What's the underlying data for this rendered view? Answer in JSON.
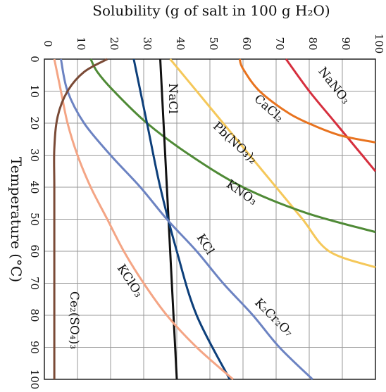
{
  "chart_data": {
    "type": "line",
    "orientation": "rotated",
    "x_axis": {
      "label": "Solubility (g of salt in 100 g H₂O)",
      "range": [
        0,
        100
      ],
      "ticks": [
        "0",
        "10",
        "20",
        "30",
        "40",
        "50",
        "60",
        "70",
        "80",
        "90",
        "100"
      ],
      "position": "top"
    },
    "y_axis": {
      "label": "Temperature (°C)",
      "range": [
        0,
        100
      ],
      "ticks": [
        "0",
        "10",
        "20",
        "30",
        "40",
        "50",
        "60",
        "70",
        "80",
        "90",
        "100"
      ],
      "position": "left"
    },
    "grid": true,
    "series": [
      {
        "name": "NaNO₃",
        "color": "#d62f3e",
        "points": [
          [
            73,
            0
          ],
          [
            80,
            10
          ],
          [
            88,
            20
          ],
          [
            96,
            30
          ],
          [
            100,
            35
          ]
        ]
      },
      {
        "name": "CaCl₂",
        "color": "#e8731f",
        "points": [
          [
            59,
            0
          ],
          [
            60,
            3
          ],
          [
            65,
            10
          ],
          [
            74,
            17
          ],
          [
            82,
            21
          ],
          [
            90,
            24
          ],
          [
            100,
            26
          ]
        ]
      },
      {
        "name": "Pb(NO₃)₂",
        "color": "#f5c85a",
        "points": [
          [
            38,
            0
          ],
          [
            46,
            10
          ],
          [
            54,
            20
          ],
          [
            62,
            30
          ],
          [
            70,
            40
          ],
          [
            78,
            50
          ],
          [
            86,
            60
          ],
          [
            100,
            65
          ]
        ]
      },
      {
        "name": "KNO₃",
        "color": "#4f8a36",
        "points": [
          [
            14,
            0
          ],
          [
            16,
            4
          ],
          [
            21,
            10
          ],
          [
            31,
            20
          ],
          [
            44,
            30
          ],
          [
            60,
            40
          ],
          [
            79,
            48
          ],
          [
            100,
            54
          ]
        ]
      },
      {
        "name": "NaCl",
        "color": "#111111",
        "points": [
          [
            35,
            0
          ],
          [
            36,
            20
          ],
          [
            37,
            40
          ],
          [
            38,
            60
          ],
          [
            39,
            80
          ],
          [
            40,
            100
          ]
        ]
      },
      {
        "name": "KCl",
        "color": "#0d3f7a",
        "points": [
          [
            27,
            0
          ],
          [
            31,
            20
          ],
          [
            35,
            40
          ],
          [
            40,
            60
          ],
          [
            46,
            80
          ],
          [
            56,
            100
          ]
        ]
      },
      {
        "name": "K₂Cr₂O₇",
        "color": "#6c83c2",
        "points": [
          [
            5,
            0
          ],
          [
            7,
            10
          ],
          [
            12,
            20
          ],
          [
            20,
            30
          ],
          [
            29,
            40
          ],
          [
            37,
            50
          ],
          [
            46,
            60
          ],
          [
            54,
            70
          ],
          [
            63,
            80
          ],
          [
            71,
            90
          ],
          [
            81,
            100
          ]
        ]
      },
      {
        "name": "KClO₃",
        "color": "#f4a585",
        "points": [
          [
            3,
            0
          ],
          [
            5,
            10
          ],
          [
            7,
            20
          ],
          [
            10,
            30
          ],
          [
            14,
            40
          ],
          [
            19,
            50
          ],
          [
            24,
            60
          ],
          [
            30,
            70
          ],
          [
            37,
            80
          ],
          [
            46,
            90
          ],
          [
            57,
            100
          ]
        ]
      },
      {
        "name": "Ce₂(SO₄)₃",
        "color": "#7a4a36",
        "points": [
          [
            19,
            0
          ],
          [
            12,
            4
          ],
          [
            7,
            10
          ],
          [
            4,
            18
          ],
          [
            3,
            28
          ],
          [
            3,
            40
          ],
          [
            3,
            60
          ],
          [
            3,
            80
          ],
          [
            3,
            100
          ]
        ]
      }
    ]
  }
}
